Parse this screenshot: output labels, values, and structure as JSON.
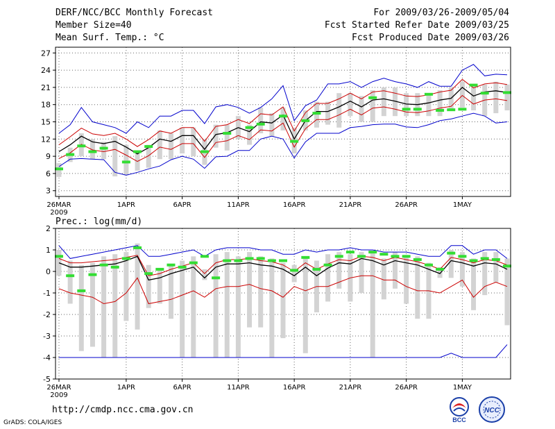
{
  "header": {
    "left": [
      "DERF/NCC/BCC Monthly Forecast",
      "Member Size=40",
      "Mean Surf. Temp.: °C"
    ],
    "right": [
      "For 2009/03/26-2009/05/04",
      "Fcst Started Refer Date 2009/03/25",
      "Fcst Produced Date 2009/03/26"
    ]
  },
  "precip_label": "Prec.: log(mm/d)",
  "footer": {
    "url": "http://cmdp.ncc.cma.gov.cn",
    "credit": "GrADS: COLA/IGES"
  },
  "logos": {
    "bcc": "BCC",
    "ncc": "NCC"
  },
  "colors": {
    "ensemble_mean": "#000000",
    "std_band": "#cc0000",
    "extremes": "#0000cc",
    "observed": "#33dd33",
    "boxes": "#d3d3d3"
  },
  "chart_data": [
    {
      "type": "line",
      "title": "Mean Surf. Temp.: °C",
      "ylabel": "°C",
      "ylim": [
        2,
        28
      ],
      "yticks": [
        3,
        6,
        9,
        12,
        15,
        18,
        21,
        24,
        27
      ],
      "xlabels": [
        {
          "day": 0,
          "label": "26MAR"
        },
        {
          "day": 6,
          "label": "1APR"
        },
        {
          "day": 11,
          "label": "6APR"
        },
        {
          "day": 16,
          "label": "11APR"
        },
        {
          "day": 21,
          "label": "16APR"
        },
        {
          "day": 26,
          "label": "21APR"
        },
        {
          "day": 31,
          "label": "26APR"
        },
        {
          "day": 36,
          "label": "1MAY"
        }
      ],
      "year_label": "2009",
      "series": [
        {
          "name": "ensemble_mean",
          "values": [
            9.8,
            11,
            12.5,
            11.5,
            11.2,
            11.6,
            10.6,
            9.4,
            10.5,
            12,
            11.6,
            12.6,
            12.6,
            10.2,
            12.8,
            13.1,
            14,
            13.3,
            15,
            14.8,
            16.2,
            12,
            15.2,
            16.8,
            16.8,
            17.6,
            18.6,
            17.6,
            18.8,
            19,
            18.6,
            18.1,
            18,
            18.3,
            18.8,
            19.1,
            21,
            19.5,
            20.2,
            20.4,
            20.1
          ]
        },
        {
          "name": "upper_std",
          "values": [
            11,
            12.4,
            13.9,
            12.9,
            12.6,
            13,
            12,
            10.7,
            11.9,
            13.4,
            13,
            14,
            14,
            11.6,
            14.2,
            14.5,
            15.4,
            14.7,
            16.4,
            16.2,
            17.6,
            13.4,
            16.6,
            18.2,
            18.2,
            19,
            20,
            19,
            20.2,
            20.4,
            20,
            19.5,
            19.4,
            19.7,
            20.2,
            20.5,
            22.4,
            20.9,
            21.6,
            21.8,
            21.5
          ]
        },
        {
          "name": "lower_std",
          "values": [
            8.6,
            9.6,
            11.1,
            10.1,
            9.8,
            10.2,
            9.2,
            8.1,
            9.1,
            10.6,
            10.2,
            11.2,
            11.2,
            8.8,
            11.4,
            11.7,
            12.6,
            11.9,
            13.6,
            13.4,
            14.8,
            10.6,
            13.8,
            15.4,
            15.4,
            16.2,
            17.2,
            16.2,
            17.4,
            17.6,
            17.2,
            16.7,
            16.6,
            16.9,
            17.4,
            17.7,
            19.6,
            18.1,
            18.8,
            19,
            18.7
          ]
        },
        {
          "name": "max",
          "values": [
            13,
            14.5,
            17.5,
            15,
            14.5,
            14,
            13,
            15,
            14,
            16,
            16,
            17,
            17,
            14.7,
            17.6,
            18,
            17.5,
            16.5,
            17.5,
            19,
            21.3,
            15.2,
            17.8,
            18.8,
            21.6,
            21.6,
            22,
            21,
            22,
            22.6,
            22,
            21.6,
            21,
            22,
            21.2,
            21.2,
            24,
            25,
            23,
            23.3,
            23.2
          ]
        },
        {
          "name": "min",
          "values": [
            7.2,
            8.5,
            8.6,
            8.5,
            8.4,
            6.2,
            5.7,
            6.2,
            6.8,
            7.3,
            8.4,
            9,
            8.5,
            6.9,
            8.9,
            9,
            10,
            10,
            12,
            12.5,
            12,
            8.7,
            11.5,
            13,
            13,
            13,
            14,
            14.2,
            14.5,
            14.6,
            14.6,
            14.1,
            14,
            14.5,
            15.2,
            15.5,
            16,
            16.5,
            16,
            14.8,
            15
          ]
        },
        {
          "name": "box_top",
          "values": [
            7.8,
            10.5,
            13,
            12,
            11.5,
            12.5,
            11,
            10,
            11,
            13.5,
            13,
            14,
            14,
            12,
            14.5,
            14.5,
            16,
            14.5,
            17.5,
            16.5,
            17.5,
            14,
            17,
            18.5,
            18.5,
            20,
            20,
            19.5,
            20.5,
            21,
            21,
            20,
            20,
            20,
            20.5,
            21,
            22,
            21.5,
            21.5,
            22,
            21.5
          ]
        },
        {
          "name": "box_bottom",
          "values": [
            5.4,
            8,
            9,
            8.5,
            8.5,
            5.5,
            5.7,
            6.5,
            7,
            8.5,
            8.5,
            9.5,
            9,
            7.5,
            10.5,
            10,
            12,
            11,
            13,
            12.5,
            13.5,
            9.5,
            13.5,
            14,
            14.5,
            14,
            16,
            15,
            15,
            16,
            16,
            16,
            16,
            16,
            16,
            17,
            17.5,
            17,
            16,
            16.5,
            17
          ]
        },
        {
          "name": "observed",
          "values": [
            6.8,
            9.3,
            10.8,
            9.8,
            10.4,
            null,
            8,
            9.8,
            10.7,
            null,
            null,
            null,
            null,
            9.8,
            null,
            13,
            null,
            14,
            14.6,
            null,
            16,
            11.6,
            15.2,
            16.5,
            null,
            null,
            null,
            null,
            19.2,
            null,
            null,
            17.2,
            17.2,
            19.8,
            17,
            17.1,
            17.2,
            21.4,
            20,
            null,
            20.1
          ]
        }
      ]
    },
    {
      "type": "line",
      "title": "Prec.: log(mm/d)",
      "ylabel": "log(mm/d)",
      "ylim": [
        -5,
        2
      ],
      "yticks": [
        -5,
        -4,
        -3,
        -2,
        -1,
        0,
        1,
        2
      ],
      "xlabels": [
        {
          "day": 0,
          "label": "26MAR"
        },
        {
          "day": 6,
          "label": "1APR"
        },
        {
          "day": 11,
          "label": "6APR"
        },
        {
          "day": 16,
          "label": "11APR"
        },
        {
          "day": 21,
          "label": "16APR"
        },
        {
          "day": 26,
          "label": "21APR"
        },
        {
          "day": 31,
          "label": "26APR"
        },
        {
          "day": 36,
          "label": "1MAY"
        }
      ],
      "year_label": "2009",
      "series": [
        {
          "name": "ensemble_mean",
          "values": [
            0.4,
            0.2,
            0.2,
            0.25,
            0.3,
            0.35,
            0.5,
            0.7,
            -0.4,
            -0.3,
            -0.1,
            0.05,
            0.2,
            -0.3,
            0.2,
            0.35,
            0.35,
            0.4,
            0.3,
            0.25,
            0.1,
            -0.2,
            0.2,
            -0.2,
            0.15,
            0.4,
            0.35,
            0.6,
            0.5,
            0.3,
            0.5,
            0.4,
            0.3,
            0.1,
            -0.1,
            0.5,
            0.4,
            0.25,
            0.4,
            0.35,
            0.1
          ]
        },
        {
          "name": "upper_std",
          "values": [
            0.6,
            0.4,
            0.4,
            0.45,
            0.5,
            0.55,
            0.65,
            0.75,
            -0.2,
            -0.1,
            0.1,
            0.25,
            0.4,
            -0.1,
            0.4,
            0.55,
            0.55,
            0.6,
            0.5,
            0.45,
            0.3,
            0,
            0.4,
            0.1,
            0.35,
            0.55,
            0.5,
            0.7,
            0.65,
            0.5,
            0.65,
            0.55,
            0.45,
            0.3,
            0.1,
            0.65,
            0.55,
            0.4,
            0.55,
            0.5,
            0.3
          ]
        },
        {
          "name": "lower_std",
          "values": [
            -0.8,
            -1,
            -1.1,
            -1.2,
            -1.5,
            -1.4,
            -1,
            -0.3,
            -1.5,
            -1.4,
            -1.3,
            -1.1,
            -0.9,
            -1.2,
            -0.8,
            -0.7,
            -0.7,
            -0.6,
            -0.8,
            -0.9,
            -1.2,
            -0.7,
            -0.9,
            -0.7,
            -0.7,
            -0.5,
            -0.3,
            -0.2,
            -0.2,
            -0.4,
            -0.4,
            -0.7,
            -0.9,
            -0.9,
            -1,
            -0.7,
            -0.4,
            -1.2,
            -0.7,
            -0.5,
            -0.7
          ]
        },
        {
          "name": "max",
          "values": [
            1.2,
            0.6,
            0.7,
            0.8,
            0.9,
            1,
            1.1,
            1.2,
            0.7,
            0.7,
            0.8,
            0.9,
            1,
            0.7,
            1,
            1.1,
            1.1,
            1.1,
            1,
            1,
            0.8,
            0.8,
            1,
            0.9,
            1,
            1,
            1.1,
            1,
            1,
            0.9,
            0.9,
            0.9,
            0.8,
            0.7,
            0.7,
            1.2,
            1.2,
            0.8,
            1,
            1,
            0.6
          ]
        },
        {
          "name": "min",
          "values": [
            -4,
            -4,
            -4,
            -4,
            -4,
            -4,
            -4,
            -4,
            -4,
            -4,
            -4,
            -4,
            -4,
            -4,
            -4,
            -4,
            -4,
            -4,
            -4,
            -4,
            -4,
            -4,
            -4,
            -4,
            -4,
            -4,
            -4,
            -4,
            -4,
            -4,
            -4,
            -4,
            -4,
            -4,
            -4,
            -3.8,
            -4,
            -4,
            -4,
            -4,
            -3.4
          ]
        },
        {
          "name": "box_top",
          "values": [
            1,
            0.5,
            0.3,
            0.4,
            0.7,
            0.8,
            0.9,
            1.3,
            0.3,
            0.1,
            0.3,
            0.5,
            0.7,
            0.1,
            0.8,
            0.9,
            0.7,
            0.9,
            0.7,
            0.6,
            0.4,
            0.3,
            0.6,
            0.5,
            0.8,
            0.9,
            0.8,
            0.9,
            0.9,
            0.6,
            0.9,
            0.7,
            0.7,
            0.4,
            0.2,
            1,
            0.9,
            0.6,
            0.9,
            0.9,
            0.6
          ]
        },
        {
          "name": "box_bottom",
          "values": [
            -0.2,
            -1.5,
            -3.7,
            -3.5,
            -4,
            -4,
            -2.3,
            -2.7,
            -1.7,
            -1.5,
            -2.2,
            -4,
            -4,
            -0.4,
            -4,
            -4,
            -4,
            -2.6,
            -2.6,
            -4,
            -3.1,
            -0.5,
            -3.8,
            -1.9,
            -1.4,
            -0.8,
            -1.4,
            -1,
            -4,
            -1.3,
            -0.8,
            -1.5,
            -2.2,
            -2.2,
            -0.3,
            -0.3,
            -0.7,
            -1.8,
            -1.1,
            -0.5,
            -2.5
          ]
        },
        {
          "name": "observed",
          "values": [
            0.7,
            -0.2,
            -0.9,
            -0.15,
            0.3,
            0.2,
            0.6,
            1.1,
            -0.1,
            0.1,
            0.3,
            0.2,
            0.4,
            0.7,
            -0.3,
            0.5,
            0.5,
            0.6,
            0.6,
            0.5,
            0.5,
            0.05,
            0.65,
            0.1,
            0.3,
            0.7,
            0.9,
            0.7,
            0.9,
            0.8,
            0.7,
            0.7,
            0.55,
            0.3,
            0.1,
            0.85,
            0.7,
            0.5,
            0.6,
            0.55,
            0.25
          ]
        }
      ]
    }
  ]
}
